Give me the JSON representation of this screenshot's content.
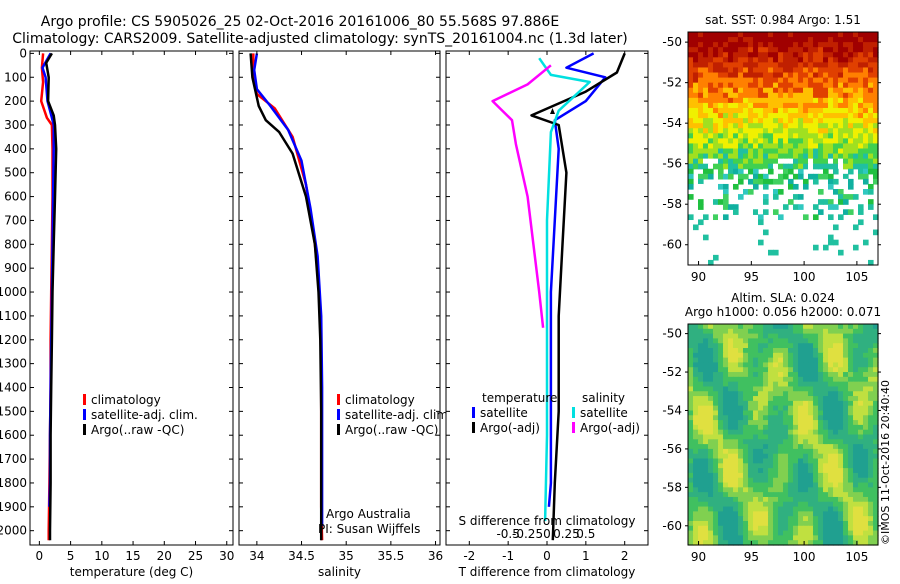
{
  "header": {
    "line1": "Argo profile: CS 5905026_25 02-Oct-2016 20161006_80 55.568S 97.886E",
    "line2": "Climatology: CARS2009. Satellite-adjusted climatology: synTS_20161004.nc (1.3d later)"
  },
  "colors": {
    "climatology": "#ff0000",
    "satellite_adj": "#0000ff",
    "argo": "#000000",
    "satellite_s": "#00e0e0",
    "argo_s": "#ff00ff"
  },
  "footer": {
    "imos_stamp": "©IMOS 11-Oct-2016 20:40:40"
  },
  "chart_data": [
    {
      "type": "line",
      "panel": "temperature",
      "xlabel": "temperature (deg C)",
      "ylabel": "",
      "xlim": [
        -1.5,
        31
      ],
      "ylim": [
        2060,
        -10
      ],
      "xticks": [
        0,
        5,
        10,
        15,
        20,
        25,
        30
      ],
      "xticklabels": [
        "0",
        "5",
        "10",
        "15",
        "20",
        "25",
        "30"
      ],
      "yticks": [
        0,
        100,
        200,
        300,
        400,
        500,
        600,
        700,
        800,
        900,
        1000,
        1100,
        1200,
        1300,
        1400,
        1500,
        1600,
        1700,
        1800,
        1900,
        2000
      ],
      "yticklabels": [
        "0",
        "100",
        "200",
        "300",
        "400",
        "500",
        "600",
        "700",
        "800",
        "900",
        "1000",
        "1100",
        "1200",
        "1300",
        "1400",
        "1500",
        "1600",
        "1700",
        "1800",
        "1900",
        "2000"
      ],
      "legend": {
        "position": "middle",
        "entries": [
          {
            "label": "climatology",
            "color": "#ff0000"
          },
          {
            "label": "satellite-adj. clim.",
            "color": "#0000ff"
          },
          {
            "label": "Argo(..raw -QC)",
            "color": "#000000"
          }
        ]
      },
      "series": [
        {
          "color": "#ff0000",
          "points": [
            [
              0.6,
              0
            ],
            [
              0.4,
              60
            ],
            [
              0.6,
              120
            ],
            [
              0.3,
              200
            ],
            [
              1.2,
              270
            ],
            [
              2.0,
              300
            ],
            [
              2.1,
              400
            ],
            [
              2.1,
              600
            ],
            [
              2.0,
              800
            ],
            [
              1.9,
              1000
            ],
            [
              1.8,
              1200
            ],
            [
              1.8,
              1400
            ],
            [
              1.7,
              1600
            ],
            [
              1.6,
              1800
            ],
            [
              1.5,
              2000
            ],
            [
              1.5,
              2040
            ]
          ]
        },
        {
          "color": "#0000ff",
          "points": [
            [
              1.8,
              0
            ],
            [
              0.5,
              60
            ],
            [
              1.0,
              100
            ],
            [
              1.3,
              200
            ],
            [
              2.0,
              270
            ],
            [
              2.3,
              300
            ],
            [
              2.3,
              400
            ],
            [
              2.2,
              600
            ],
            [
              2.1,
              800
            ],
            [
              2.0,
              1000
            ],
            [
              1.9,
              1200
            ],
            [
              1.8,
              1400
            ],
            [
              1.7,
              1600
            ],
            [
              1.7,
              1800
            ],
            [
              1.6,
              1900
            ]
          ]
        },
        {
          "color": "#000000",
          "points": [
            [
              2.0,
              0
            ],
            [
              1.1,
              40
            ],
            [
              1.5,
              100
            ],
            [
              1.4,
              200
            ],
            [
              2.3,
              260
            ],
            [
              2.5,
              300
            ],
            [
              2.7,
              400
            ],
            [
              2.5,
              600
            ],
            [
              2.3,
              800
            ],
            [
              2.1,
              1000
            ],
            [
              2.0,
              1200
            ],
            [
              1.9,
              1400
            ],
            [
              1.8,
              1600
            ],
            [
              1.8,
              1800
            ],
            [
              1.7,
              2000
            ],
            [
              1.7,
              2040
            ]
          ]
        }
      ]
    },
    {
      "type": "line",
      "panel": "salinity",
      "xlabel": "salinity",
      "ylabel": "",
      "xlim": [
        33.8,
        36.05
      ],
      "ylim": [
        2060,
        -10
      ],
      "xticks": [
        34,
        34.5,
        35,
        35.5,
        36
      ],
      "xticklabels": [
        "34",
        "34.5",
        "35",
        "35.5",
        "36"
      ],
      "legend": {
        "position": "middle",
        "entries": [
          {
            "label": "climatology",
            "color": "#ff0000"
          },
          {
            "label": "satellite-adj. clim.",
            "color": "#0000ff"
          },
          {
            "label": "Argo(..raw -QC)",
            "color": "#000000"
          }
        ]
      },
      "annotation": [
        "Argo Australia",
        "PI: Susan Wijffels"
      ],
      "series": [
        {
          "color": "#ff0000",
          "points": [
            [
              33.96,
              0
            ],
            [
              33.96,
              100
            ],
            [
              34.0,
              170
            ],
            [
              34.2,
              230
            ],
            [
              34.4,
              350
            ],
            [
              34.55,
              550
            ],
            [
              34.65,
              800
            ],
            [
              34.7,
              1000
            ],
            [
              34.72,
              1300
            ],
            [
              34.72,
              1600
            ],
            [
              34.72,
              1900
            ],
            [
              34.73,
              2040
            ]
          ]
        },
        {
          "color": "#0000ff",
          "points": [
            [
              34.0,
              0
            ],
            [
              33.97,
              70
            ],
            [
              34.0,
              150
            ],
            [
              34.15,
              220
            ],
            [
              34.35,
              320
            ],
            [
              34.5,
              450
            ],
            [
              34.6,
              650
            ],
            [
              34.68,
              850
            ],
            [
              34.72,
              1100
            ],
            [
              34.73,
              1400
            ],
            [
              34.73,
              1700
            ],
            [
              34.73,
              1980
            ]
          ]
        },
        {
          "color": "#000000",
          "points": [
            [
              33.93,
              0
            ],
            [
              33.95,
              100
            ],
            [
              34.02,
              220
            ],
            [
              34.1,
              280
            ],
            [
              34.25,
              330
            ],
            [
              34.4,
              420
            ],
            [
              34.55,
              600
            ],
            [
              34.65,
              800
            ],
            [
              34.69,
              1000
            ],
            [
              34.71,
              1200
            ],
            [
              34.72,
              1500
            ],
            [
              34.72,
              1800
            ],
            [
              34.72,
              2040
            ]
          ]
        }
      ]
    },
    {
      "type": "line",
      "panel": "difference",
      "xlabel": "T difference from climatology",
      "xlabel_top": "S difference from climatology",
      "ylabel": "",
      "xlim": [
        -2.6,
        2.6
      ],
      "ylim": [
        2060,
        -10
      ],
      "xticks": [
        -2,
        -1,
        0,
        1,
        2
      ],
      "xticklabels": [
        "-2",
        "-1",
        "0",
        "1",
        "2"
      ],
      "sticks": [
        -0.5,
        -0.25,
        0,
        0.25,
        0.5
      ],
      "sticklabels": [
        "-0.5",
        "-0.25",
        "0",
        "0.25",
        "0.5"
      ],
      "legend": {
        "position": "middle",
        "columns": [
          {
            "title": "temperature",
            "entries": [
              {
                "label": "satellite",
                "color": "#0000ff"
              },
              {
                "label": "Argo(-adj)",
                "color": "#000000"
              }
            ]
          },
          {
            "title": "salinity",
            "entries": [
              {
                "label": "satellite",
                "color": "#00e0e0"
              },
              {
                "label": "Argo(-adj)",
                "color": "#ff00ff"
              }
            ]
          }
        ]
      },
      "series": [
        {
          "color": "#0000ff",
          "points": [
            [
              1.2,
              0
            ],
            [
              0.5,
              60
            ],
            [
              1.5,
              100
            ],
            [
              1.0,
              200
            ],
            [
              0.2,
              280
            ],
            [
              0.3,
              400
            ],
            [
              0.2,
              700
            ],
            [
              0.1,
              1000
            ],
            [
              0.1,
              1400
            ],
            [
              0.1,
              1800
            ],
            [
              0.05,
              1900
            ]
          ]
        },
        {
          "color": "#000000",
          "points": [
            [
              2.0,
              0
            ],
            [
              1.8,
              80
            ],
            [
              1.0,
              160
            ],
            [
              -0.4,
              260
            ],
            [
              0.3,
              300
            ],
            [
              0.5,
              500
            ],
            [
              0.4,
              800
            ],
            [
              0.3,
              1100
            ],
            [
              0.3,
              1500
            ],
            [
              0.2,
              1800
            ],
            [
              0.15,
              2040
            ]
          ]
        },
        {
          "color": "#00e0e0",
          "points": [
            [
              -0.2,
              20
            ],
            [
              0.1,
              90
            ],
            [
              1.1,
              120
            ],
            [
              0.3,
              240
            ],
            [
              0.1,
              330
            ],
            [
              0.0,
              700
            ],
            [
              0.0,
              1200
            ],
            [
              0.0,
              1600
            ],
            [
              -0.05,
              1960
            ]
          ]
        },
        {
          "color": "#ff00ff",
          "points": [
            [
              0.1,
              50
            ],
            [
              -0.5,
              130
            ],
            [
              -1.4,
              200
            ],
            [
              -0.9,
              280
            ],
            [
              -0.8,
              380
            ],
            [
              -0.5,
              600
            ],
            [
              -0.35,
              800
            ],
            [
              -0.2,
              1000
            ],
            [
              -0.1,
              1150
            ]
          ]
        }
      ]
    },
    {
      "type": "heatmap",
      "panel": "sst",
      "title": "sat. SST: 0.984  Argo: 1.51",
      "xlim": [
        89,
        107
      ],
      "ylim": [
        -61,
        -49.5
      ],
      "xticks": [
        90,
        95,
        100,
        105
      ],
      "yticks": [
        -50,
        -52,
        -54,
        -56,
        -58,
        -60
      ],
      "xticklabels": [
        "90",
        "95",
        "100",
        "105"
      ],
      "yticklabels": [
        "-50",
        "-52",
        "-54",
        "-56",
        "-58",
        "-60"
      ],
      "marker": [
        97.886,
        -55.568
      ]
    },
    {
      "type": "heatmap",
      "panel": "sla",
      "title_line1": "Altim. SLA: 0.024",
      "title_line2": "Argo h1000: 0.056  h2000: 0.071",
      "xlim": [
        89,
        107
      ],
      "ylim": [
        -61,
        -49.5
      ],
      "xticks": [
        90,
        95,
        100,
        105
      ],
      "yticks": [
        -50,
        -52,
        -54,
        -56,
        -58,
        -60
      ],
      "xticklabels": [
        "90",
        "95",
        "100",
        "105"
      ],
      "yticklabels": [
        "-50",
        "-52",
        "-54",
        "-56",
        "-58",
        "-60"
      ]
    }
  ]
}
